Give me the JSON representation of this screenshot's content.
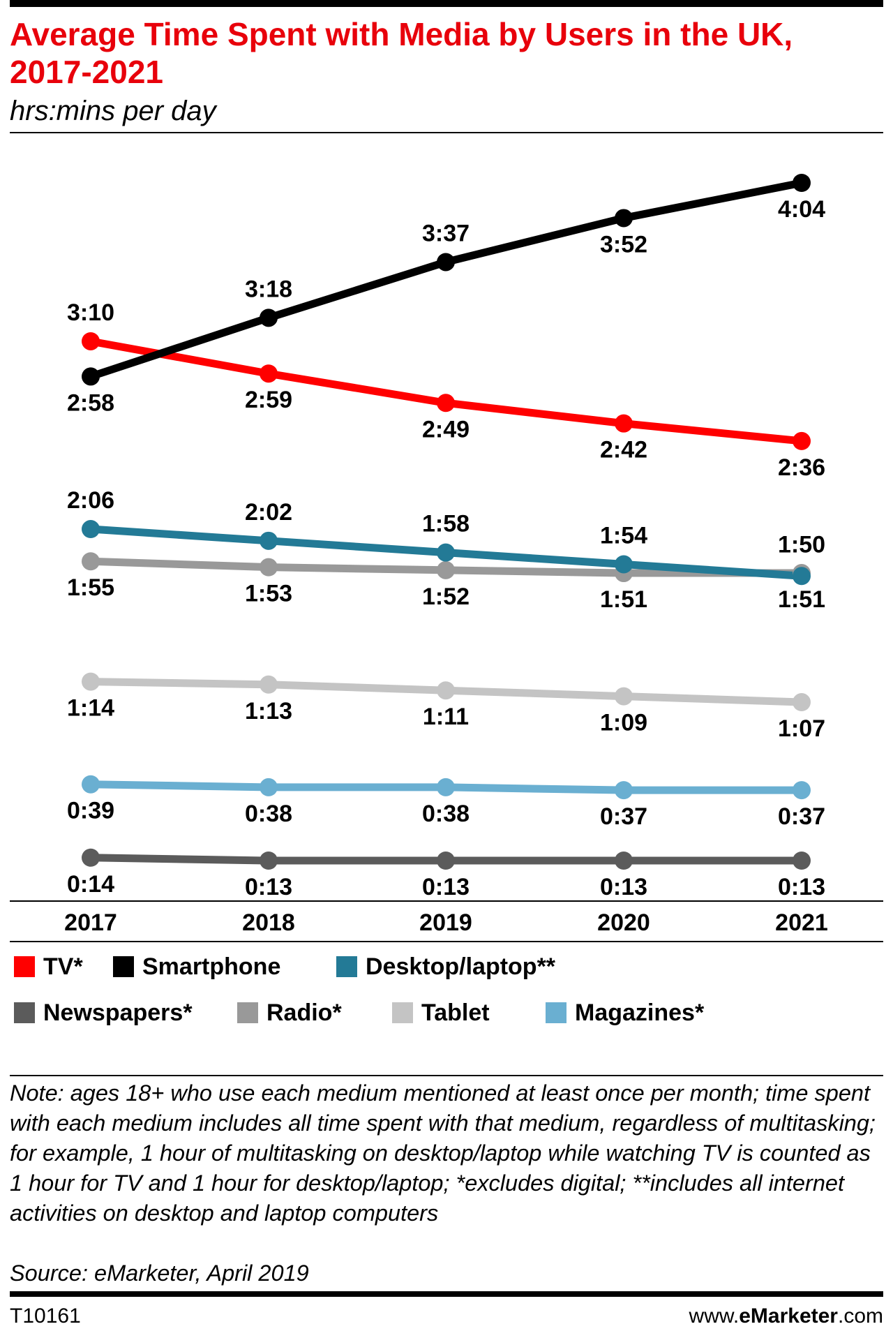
{
  "header": {
    "title": "Average Time Spent with Media by Users in the UK, 2017-2021",
    "subtitle": "hrs:mins per day"
  },
  "chart_data": {
    "type": "line",
    "title": "Average Time Spent with Media by Users in the UK, 2017-2021",
    "subtitle": "hrs:mins per day",
    "unit": "hrs:mins per day",
    "x": [
      "2017",
      "2018",
      "2019",
      "2020",
      "2021"
    ],
    "series": [
      {
        "name": "TV*",
        "color": "#ff0000",
        "values": [
          190,
          179,
          169,
          162,
          156
        ],
        "labels": [
          "3:10",
          "2:59",
          "2:49",
          "2:42",
          "2:36"
        ]
      },
      {
        "name": "Smartphone",
        "color": "#000000",
        "values": [
          178,
          198,
          217,
          232,
          244
        ],
        "labels": [
          "2:58",
          "3:18",
          "3:37",
          "3:52",
          "4:04"
        ]
      },
      {
        "name": "Desktop/laptop**",
        "color": "#237a96",
        "values": [
          126,
          122,
          118,
          114,
          110
        ],
        "labels": [
          "2:06",
          "2:02",
          "1:58",
          "1:54",
          "1:50"
        ]
      },
      {
        "name": "Newspapers*",
        "color": "#5b5b5b",
        "values": [
          14,
          13,
          13,
          13,
          13
        ],
        "labels": [
          "0:14",
          "0:13",
          "0:13",
          "0:13",
          "0:13"
        ]
      },
      {
        "name": "Radio*",
        "color": "#999999",
        "values": [
          115,
          113,
          112,
          111,
          111
        ],
        "labels": [
          "1:55",
          "1:53",
          "1:52",
          "1:51",
          "1:51"
        ]
      },
      {
        "name": "Tablet",
        "color": "#c4c4c4",
        "values": [
          74,
          73,
          71,
          69,
          67
        ],
        "labels": [
          "1:14",
          "1:13",
          "1:11",
          "1:09",
          "1:07"
        ]
      },
      {
        "name": "Magazines*",
        "color": "#6aafd1",
        "values": [
          39,
          38,
          38,
          37,
          37
        ],
        "labels": [
          "0:39",
          "0:38",
          "0:38",
          "0:37",
          "0:37"
        ]
      }
    ],
    "legend_position": "bottom",
    "grid": false
  },
  "legend": [
    {
      "label": "TV*",
      "color": "#ff0000"
    },
    {
      "label": "Smartphone",
      "color": "#000000"
    },
    {
      "label": "Desktop/laptop**",
      "color": "#237a96"
    },
    {
      "label": "Newspapers*",
      "color": "#5b5b5b"
    },
    {
      "label": "Radio*",
      "color": "#999999"
    },
    {
      "label": "Tablet",
      "color": "#c4c4c4"
    },
    {
      "label": "Magazines*",
      "color": "#6aafd1"
    }
  ],
  "footer": {
    "note": "Note: ages 18+ who use each medium mentioned at least once per month; time spent with each medium includes all time spent with that medium, regardless of multitasking; for example, 1 hour of multitasking on desktop/laptop while watching TV is counted as 1 hour for TV and 1 hour for desktop/laptop; *excludes digital; **includes all internet activities on desktop and laptop computers",
    "source": "Source: eMarketer, April 2019",
    "chart_id": "T10161",
    "site_prefix": "www.",
    "site_brand": "eMarketer",
    "site_suffix": ".com"
  }
}
